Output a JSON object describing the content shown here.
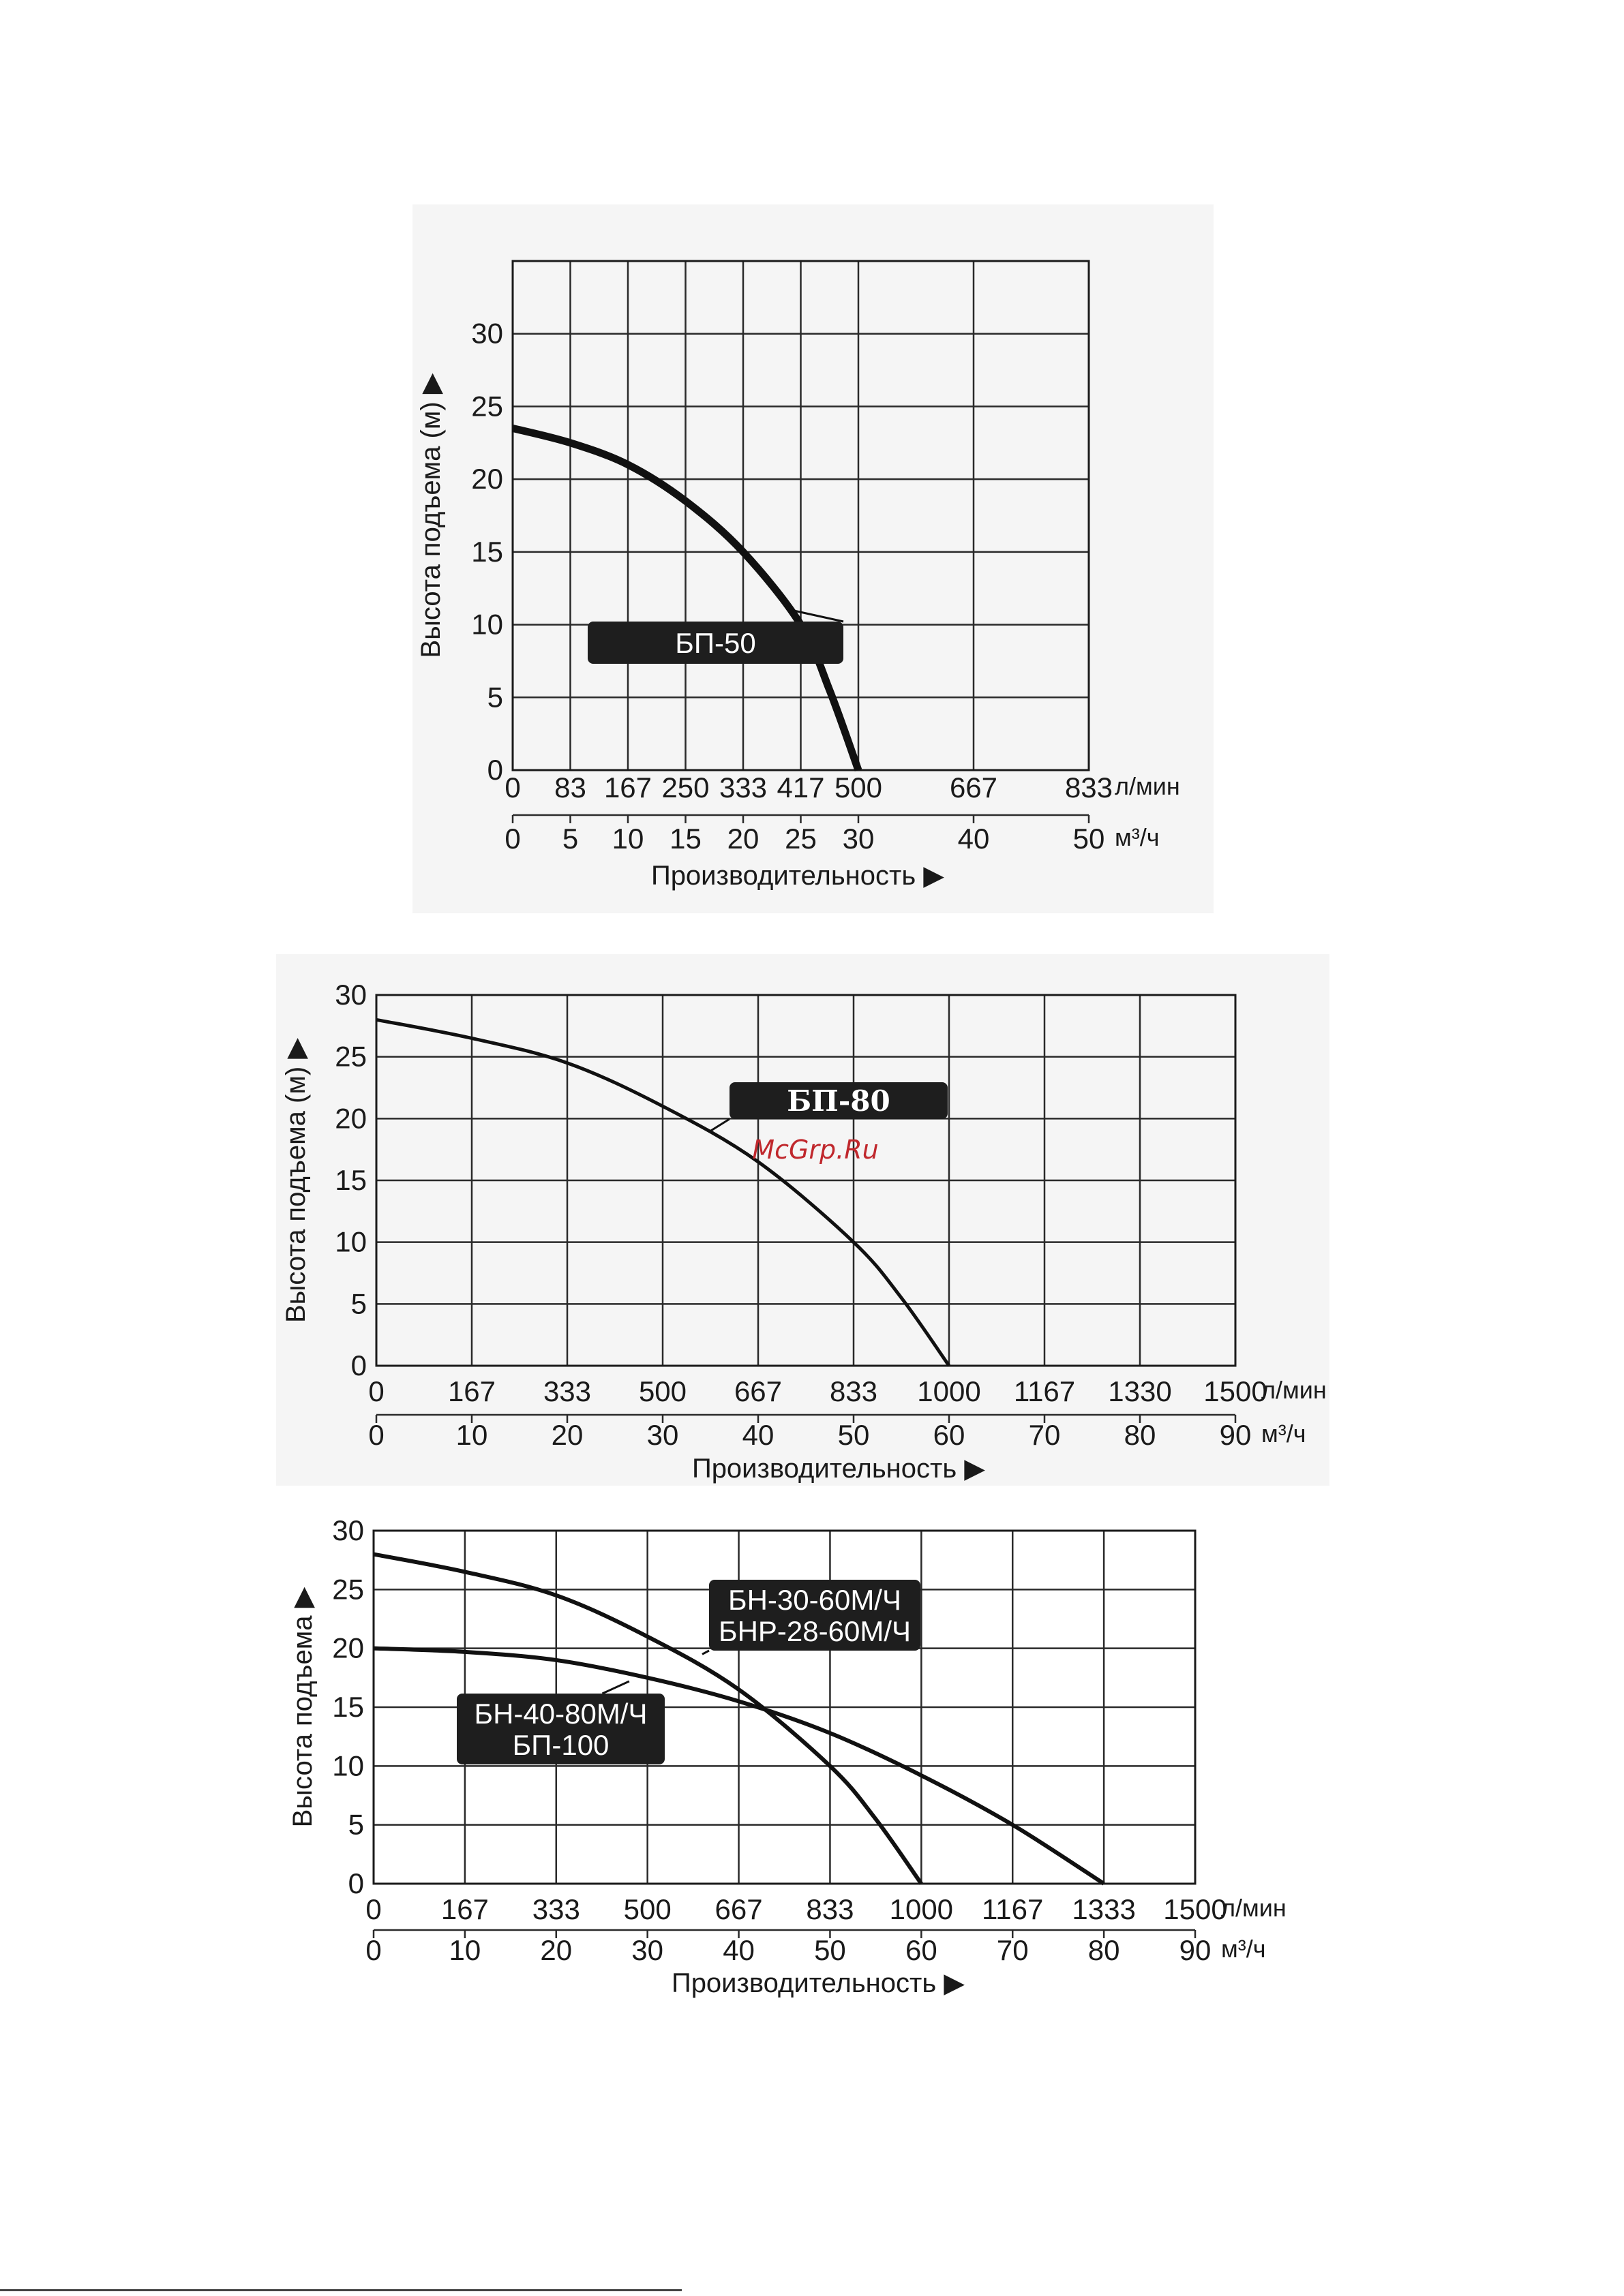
{
  "charts": [
    {
      "id": "bp50",
      "chart_data": {
        "type": "line",
        "title": "",
        "ylabel": "Высота подъема (м)",
        "ylabel_arrow": "▶",
        "xlabel": "Производительность",
        "xlabel_arrow": "▶",
        "ylim": [
          0,
          35
        ],
        "yticks": [
          0,
          5,
          10,
          15,
          20,
          25,
          30
        ],
        "xlim": [
          0,
          50
        ],
        "x_grid": [
          0,
          5,
          10,
          15,
          20,
          25,
          30,
          40,
          50
        ],
        "x_lmin_labels": [
          "0",
          "83",
          "167",
          "250",
          "333",
          "417",
          "500",
          "667",
          "833"
        ],
        "x_m3h_labels": [
          "0",
          "5",
          "10",
          "15",
          "20",
          "25",
          "30",
          "40",
          "50"
        ],
        "unit_lmin": "л/мин",
        "unit_m3h": "м³/ч",
        "series": [
          {
            "name": "БП-50",
            "x": [
              0,
              5,
              10,
              15,
              20,
              25,
              27.5,
              30
            ],
            "y": [
              23.5,
              22.5,
              21.0,
              18.5,
              15.0,
              10.0,
              5.5,
              0
            ]
          }
        ],
        "legend": [
          {
            "text": [
              "БП-50"
            ],
            "points_to": {
              "x": 24.2,
              "y": 11
            }
          }
        ]
      }
    },
    {
      "id": "bp80",
      "chart_data": {
        "type": "line",
        "title": "",
        "ylabel": "Высота подъема (м)",
        "ylabel_arrow": "▶",
        "xlabel": "Производительность",
        "xlabel_arrow": "▶",
        "ylim": [
          0,
          30
        ],
        "yticks": [
          0,
          5,
          10,
          15,
          20,
          25,
          30
        ],
        "xlim": [
          0,
          90
        ],
        "x_grid": [
          0,
          10,
          20,
          30,
          40,
          50,
          60,
          70,
          80,
          90
        ],
        "x_lmin_labels": [
          "0",
          "167",
          "333",
          "500",
          "667",
          "833",
          "1000",
          "1167",
          "1330",
          "1500"
        ],
        "x_m3h_labels": [
          "0",
          "10",
          "20",
          "30",
          "40",
          "50",
          "60",
          "70",
          "80",
          "90"
        ],
        "unit_lmin": "л/мин",
        "unit_m3h": "м³/ч",
        "series": [
          {
            "name": "БП-80",
            "x": [
              0,
              10,
              20,
              30,
              40,
              50,
              55,
              60
            ],
            "y": [
              28,
              26.5,
              24.5,
              21,
              16.5,
              10,
              5.5,
              0
            ]
          }
        ],
        "legend": [
          {
            "text": [
              "БП-80"
            ],
            "points_to": {
              "x": 35,
              "y": 19
            }
          }
        ],
        "watermark": "McGrp.Ru"
      }
    },
    {
      "id": "bn",
      "chart_data": {
        "type": "line",
        "title": "",
        "ylabel": "Высота подъема",
        "ylabel_arrow": "▶",
        "xlabel": "Производительность",
        "xlabel_arrow": "▶",
        "ylim": [
          0,
          30
        ],
        "yticks": [
          0,
          5,
          10,
          15,
          20,
          25,
          30
        ],
        "xlim": [
          0,
          90
        ],
        "x_grid": [
          0,
          10,
          20,
          30,
          40,
          50,
          60,
          70,
          80,
          90
        ],
        "x_lmin_labels": [
          "0",
          "167",
          "333",
          "500",
          "667",
          "833",
          "1000",
          "1167",
          "1333",
          "1500"
        ],
        "x_m3h_labels": [
          "0",
          "10",
          "20",
          "30",
          "40",
          "50",
          "60",
          "70",
          "80",
          "90"
        ],
        "unit_lmin": "л/мин",
        "unit_m3h": "м³/ч",
        "series": [
          {
            "name": "БН-30-60М/Ч / БНР-28-60М/Ч",
            "x": [
              0,
              10,
              20,
              30,
              40,
              50,
              55,
              60
            ],
            "y": [
              28,
              26.5,
              24.5,
              21,
              16.5,
              10,
              5.5,
              0
            ]
          },
          {
            "name": "БН-40-80М/Ч / БП-100",
            "x": [
              0,
              10,
              20,
              30,
              40,
              50,
              60,
              70,
              80
            ],
            "y": [
              20,
              19.7,
              19,
              17.5,
              15.5,
              12.8,
              9.2,
              5,
              0
            ]
          }
        ],
        "legend": [
          {
            "text": [
              "БН-30-60М/Ч",
              "БНР-28-60М/Ч"
            ],
            "points_to": {
              "x": 36,
              "y": 19.5
            }
          },
          {
            "text": [
              "БН-40-80М/Ч",
              "БП-100"
            ],
            "points_to": {
              "x": 28,
              "y": 17.2
            }
          }
        ]
      }
    }
  ]
}
